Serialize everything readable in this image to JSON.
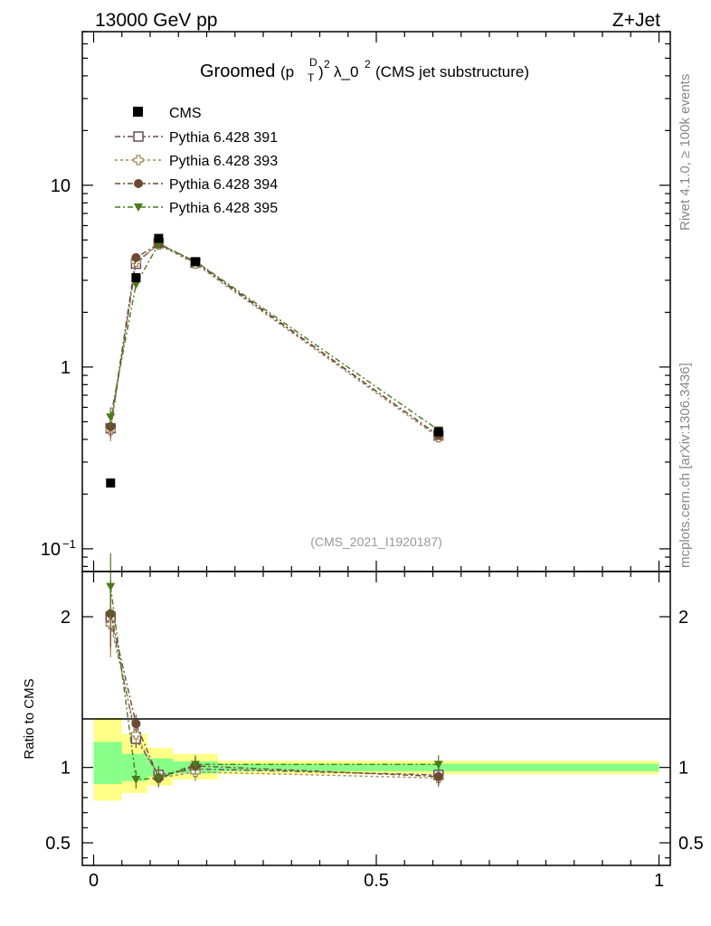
{
  "header": {
    "left": "13000 GeV pp",
    "right": "Z+Jet"
  },
  "side": {
    "rivet": "Rivet 4.1.0, ≥ 100k events",
    "mcplots": "mcplots.cern.ch [arXiv:1306.3436]"
  },
  "chart_data": {
    "type": "line",
    "title": {
      "prefix": "Groomed",
      "sup1": "D",
      "sub1": "T",
      "p": "(p",
      "close": ")",
      "sup2": "2",
      "lambda": "λ_0",
      "sup3": "2",
      "suffix": "(CMS jet substructure)"
    },
    "analysis_id": "(CMS_2021_I1920187)",
    "x": [
      0.03,
      0.075,
      0.115,
      0.18,
      0.61
    ],
    "xlim": [
      -0.02,
      1.02
    ],
    "main": {
      "yscale": "log",
      "ylim": [
        0.075,
        70
      ],
      "yticks": [
        {
          "value": 10,
          "label": "10"
        },
        {
          "value": 1,
          "label": "1"
        },
        {
          "value": 0.1,
          "label": "10",
          "sup": "−1"
        }
      ]
    },
    "ratio": {
      "ylabel": "Ratio to CMS",
      "ylim": [
        0.35,
        2.3
      ],
      "yticks": [
        {
          "value": 2,
          "label": "2"
        },
        {
          "value": 1,
          "label": "1"
        },
        {
          "value": 0.5,
          "label": "0.5"
        }
      ],
      "bands": [
        {
          "x0": 0.0,
          "x1": 0.05,
          "yellow": [
            0.78,
            1.33
          ],
          "green": [
            0.89,
            1.17
          ]
        },
        {
          "x0": 0.05,
          "x1": 0.095,
          "yellow": [
            0.83,
            1.22
          ],
          "green": [
            0.91,
            1.09
          ]
        },
        {
          "x0": 0.095,
          "x1": 0.14,
          "yellow": [
            0.88,
            1.13
          ],
          "green": [
            0.94,
            1.06
          ]
        },
        {
          "x0": 0.14,
          "x1": 0.22,
          "yellow": [
            0.92,
            1.09
          ],
          "green": [
            0.96,
            1.04
          ]
        },
        {
          "x0": 0.22,
          "x1": 1.0,
          "yellow": [
            0.955,
            1.045
          ],
          "green": [
            0.975,
            1.025
          ]
        }
      ]
    },
    "xaxis": {
      "ticks": [
        {
          "value": 0,
          "label": "0"
        },
        {
          "value": 0.5,
          "label": "0.5"
        },
        {
          "value": 1,
          "label": "1"
        }
      ]
    },
    "data": {
      "name": "CMS",
      "color": "#000000",
      "y": [
        0.23,
        3.1,
        5.1,
        3.8,
        0.44
      ]
    },
    "series": [
      {
        "name": "Pythia 6.428 391",
        "color": "#6b4a5c",
        "marker": "open-square",
        "y": [
          0.46,
          3.7,
          4.8,
          3.75,
          0.42
        ],
        "yerr": [
          0.06,
          0.15,
          0.2,
          0.12,
          0.02
        ],
        "ratio": [
          2.0,
          1.19,
          0.95,
          0.99,
          0.95
        ]
      },
      {
        "name": "Pythia 6.428 393",
        "color": "#a08a5a",
        "marker": "open-cross",
        "y": [
          0.45,
          3.8,
          4.7,
          3.7,
          0.41
        ],
        "yerr": [
          0.06,
          0.15,
          0.2,
          0.12,
          0.02
        ],
        "ratio": [
          1.95,
          1.22,
          0.93,
          0.97,
          0.93
        ]
      },
      {
        "name": "Pythia 6.428 394",
        "color": "#6e4a32",
        "marker": "circle",
        "y": [
          0.47,
          4.0,
          4.75,
          3.8,
          0.42
        ],
        "yerr": [
          0.06,
          0.15,
          0.2,
          0.12,
          0.02
        ],
        "ratio": [
          2.02,
          1.29,
          0.93,
          1.01,
          0.94
        ]
      },
      {
        "name": "Pythia 6.428 395",
        "color": "#4a7a1a",
        "marker": "down-triangle",
        "y": [
          0.53,
          2.85,
          4.75,
          3.82,
          0.45
        ],
        "yerr": [
          0.07,
          0.15,
          0.2,
          0.12,
          0.02
        ],
        "ratio": [
          2.2,
          0.92,
          0.93,
          1.02,
          1.02
        ]
      }
    ]
  },
  "colors": {
    "band_yellow": "#ffff88",
    "band_green": "#88ff88"
  }
}
